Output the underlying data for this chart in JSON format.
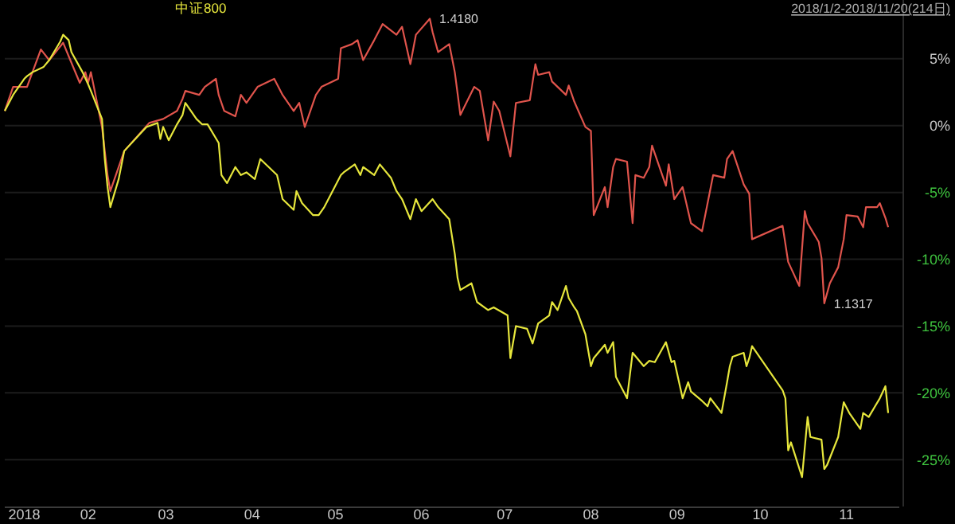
{
  "chart_data": {
    "type": "line",
    "legend": "top",
    "grid": "y",
    "annotations": [
      "2018/1/2-2018/11/20(214日)",
      {
        "text": "1.4180",
        "x": "2018-06-04",
        "y": 8.0
      },
      {
        "text": "1.1317",
        "x": "2018-10-24",
        "y": -13.3
      }
    ],
    "xlim": [
      "2018-01-02",
      "2018-11-20"
    ],
    "xticks": [
      {
        "value": "2018-01-09",
        "label": "2018"
      },
      {
        "value": "2018-02-01",
        "label": "02"
      },
      {
        "value": "2018-03-01",
        "label": "03"
      },
      {
        "value": "2018-04-01",
        "label": "04"
      },
      {
        "value": "2018-05-01",
        "label": "05"
      },
      {
        "value": "2018-06-01",
        "label": "06"
      },
      {
        "value": "2018-07-01",
        "label": "07"
      },
      {
        "value": "2018-08-01",
        "label": "08"
      },
      {
        "value": "2018-09-01",
        "label": "09"
      },
      {
        "value": "2018-10-01",
        "label": "10"
      },
      {
        "value": "2018-11-01",
        "label": "11"
      }
    ],
    "ylim": [
      -28.5,
      9.4
    ],
    "yticks": [
      {
        "value": 5,
        "label": "5%"
      },
      {
        "value": 0,
        "label": "0%"
      },
      {
        "value": -5,
        "label": "-5%"
      },
      {
        "value": -10,
        "label": "-10%"
      },
      {
        "value": -15,
        "label": "-15%"
      },
      {
        "value": -20,
        "label": "-20%"
      },
      {
        "value": -25,
        "label": "-25%"
      }
    ],
    "series": [
      {
        "color": "#e0544c",
        "x": [
          "2018-01-02",
          "2018-01-05",
          "2018-01-10",
          "2018-01-15",
          "2018-01-18",
          "2018-01-23",
          "2018-01-25",
          "2018-01-29",
          "2018-01-31",
          "2018-02-01",
          "2018-02-02",
          "2018-02-06",
          "2018-02-08",
          "2018-02-09",
          "2018-02-14",
          "2018-02-23",
          "2018-02-28",
          "2018-03-05",
          "2018-03-07",
          "2018-03-08",
          "2018-03-13",
          "2018-03-15",
          "2018-03-19",
          "2018-03-20",
          "2018-03-22",
          "2018-03-26",
          "2018-03-28",
          "2018-03-30",
          "2018-04-03",
          "2018-04-09",
          "2018-04-12",
          "2018-04-16",
          "2018-04-18",
          "2018-04-20",
          "2018-04-24",
          "2018-04-26",
          "2018-05-02",
          "2018-05-03",
          "2018-05-07",
          "2018-05-09",
          "2018-05-11",
          "2018-05-15",
          "2018-05-18",
          "2018-05-23",
          "2018-05-25",
          "2018-05-28",
          "2018-05-30",
          "2018-06-04",
          "2018-06-05",
          "2018-06-07",
          "2018-06-11",
          "2018-06-13",
          "2018-06-15",
          "2018-06-20",
          "2018-06-22",
          "2018-06-25",
          "2018-06-27",
          "2018-06-29",
          "2018-07-03",
          "2018-07-05",
          "2018-07-10",
          "2018-07-12",
          "2018-07-13",
          "2018-07-17",
          "2018-07-18",
          "2018-07-23",
          "2018-07-24",
          "2018-07-26",
          "2018-07-30",
          "2018-08-01",
          "2018-08-02",
          "2018-08-06",
          "2018-08-07",
          "2018-08-09",
          "2018-08-10",
          "2018-08-14",
          "2018-08-16",
          "2018-08-17",
          "2018-08-20",
          "2018-08-22",
          "2018-08-23",
          "2018-08-27",
          "2018-08-28",
          "2018-08-29",
          "2018-08-31",
          "2018-09-03",
          "2018-09-05",
          "2018-09-06",
          "2018-09-10",
          "2018-09-12",
          "2018-09-14",
          "2018-09-18",
          "2018-09-19",
          "2018-09-21",
          "2018-09-25",
          "2018-09-27",
          "2018-09-28",
          "2018-10-09",
          "2018-10-11",
          "2018-10-15",
          "2018-10-17",
          "2018-10-18",
          "2018-10-22",
          "2018-10-23",
          "2018-10-24",
          "2018-10-26",
          "2018-10-29",
          "2018-10-31",
          "2018-11-01",
          "2018-11-05",
          "2018-11-07",
          "2018-11-08",
          "2018-11-12",
          "2018-11-13",
          "2018-11-15",
          "2018-11-16"
        ],
        "values": [
          1.1,
          2.9,
          2.9,
          5.7,
          4.9,
          6.2,
          5.2,
          3.2,
          4.0,
          3.2,
          4.0,
          -0.1,
          -3.7,
          -4.9,
          -1.9,
          0.2,
          0.5,
          1.1,
          2.0,
          2.6,
          2.3,
          2.9,
          3.5,
          2.3,
          1.1,
          0.7,
          2.3,
          1.7,
          2.9,
          3.5,
          2.3,
          1.1,
          1.7,
          -0.1,
          2.3,
          2.9,
          3.5,
          5.8,
          6.1,
          6.4,
          4.9,
          6.4,
          7.6,
          6.8,
          7.4,
          4.6,
          6.8,
          8.0,
          7.0,
          5.5,
          6.1,
          4.0,
          0.8,
          2.9,
          2.6,
          -1.1,
          1.8,
          1.1,
          -2.3,
          1.7,
          1.9,
          4.6,
          3.8,
          4.0,
          3.3,
          2.3,
          3.0,
          1.8,
          -0.1,
          -0.4,
          -6.7,
          -4.6,
          -6.1,
          -3.1,
          -2.5,
          -2.7,
          -7.3,
          -3.7,
          -3.9,
          -3.1,
          -1.5,
          -3.9,
          -4.5,
          -2.9,
          -5.5,
          -4.6,
          -6.4,
          -7.3,
          -7.9,
          -5.8,
          -3.7,
          -3.9,
          -2.5,
          -1.9,
          -4.4,
          -5.1,
          -8.5,
          -7.5,
          -10.2,
          -12.0,
          -6.4,
          -7.3,
          -8.7,
          -9.9,
          -13.3,
          -11.8,
          -10.6,
          -8.5,
          -6.7,
          -6.8,
          -7.6,
          -6.1,
          -6.1,
          -5.8,
          -6.9,
          -7.6
        ]
      },
      {
        "name": "中证800",
        "color": "#e6e63c",
        "x": [
          "2018-01-02",
          "2018-01-05",
          "2018-01-09",
          "2018-01-10",
          "2018-01-12",
          "2018-01-16",
          "2018-01-18",
          "2018-01-22",
          "2018-01-23",
          "2018-01-25",
          "2018-01-26",
          "2018-01-30",
          "2018-02-01",
          "2018-02-02",
          "2018-02-06",
          "2018-02-07",
          "2018-02-08",
          "2018-02-09",
          "2018-02-12",
          "2018-02-14",
          "2018-02-22",
          "2018-02-26",
          "2018-02-27",
          "2018-02-28",
          "2018-03-02",
          "2018-03-05",
          "2018-03-07",
          "2018-03-08",
          "2018-03-12",
          "2018-03-14",
          "2018-03-16",
          "2018-03-20",
          "2018-03-21",
          "2018-03-23",
          "2018-03-26",
          "2018-03-28",
          "2018-03-30",
          "2018-04-02",
          "2018-04-04",
          "2018-04-10",
          "2018-04-12",
          "2018-04-16",
          "2018-04-17",
          "2018-04-19",
          "2018-04-23",
          "2018-04-25",
          "2018-04-27",
          "2018-05-03",
          "2018-05-04",
          "2018-05-08",
          "2018-05-10",
          "2018-05-11",
          "2018-05-15",
          "2018-05-17",
          "2018-05-21",
          "2018-05-23",
          "2018-05-25",
          "2018-05-28",
          "2018-05-30",
          "2018-06-01",
          "2018-06-05",
          "2018-06-07",
          "2018-06-11",
          "2018-06-13",
          "2018-06-14",
          "2018-06-15",
          "2018-06-19",
          "2018-06-21",
          "2018-06-25",
          "2018-06-27",
          "2018-07-02",
          "2018-07-03",
          "2018-07-05",
          "2018-07-09",
          "2018-07-11",
          "2018-07-13",
          "2018-07-17",
          "2018-07-18",
          "2018-07-20",
          "2018-07-23",
          "2018-07-24",
          "2018-07-26",
          "2018-07-27",
          "2018-07-30",
          "2018-08-01",
          "2018-08-02",
          "2018-08-06",
          "2018-08-07",
          "2018-08-09",
          "2018-08-10",
          "2018-08-14",
          "2018-08-16",
          "2018-08-20",
          "2018-08-22",
          "2018-08-24",
          "2018-08-28",
          "2018-08-30",
          "2018-08-31",
          "2018-09-03",
          "2018-09-05",
          "2018-09-06",
          "2018-09-10",
          "2018-09-12",
          "2018-09-13",
          "2018-09-17",
          "2018-09-19",
          "2018-09-20",
          "2018-09-21",
          "2018-09-25",
          "2018-09-26",
          "2018-09-27",
          "2018-09-28",
          "2018-10-09",
          "2018-10-10",
          "2018-10-11",
          "2018-10-12",
          "2018-10-16",
          "2018-10-18",
          "2018-10-19",
          "2018-10-23",
          "2018-10-24",
          "2018-10-25",
          "2018-10-29",
          "2018-10-31",
          "2018-11-02",
          "2018-11-06",
          "2018-11-07",
          "2018-11-09",
          "2018-11-13",
          "2018-11-15",
          "2018-11-16"
        ],
        "values": [
          1.1,
          2.3,
          3.5,
          3.7,
          4.0,
          4.4,
          4.9,
          6.3,
          6.8,
          6.4,
          5.5,
          4.0,
          3.1,
          2.6,
          0.5,
          -2.5,
          -4.6,
          -6.1,
          -4.0,
          -1.9,
          -0.1,
          0.2,
          -1.0,
          -0.1,
          -1.1,
          0.1,
          0.8,
          1.7,
          0.5,
          0.1,
          0.1,
          -1.3,
          -3.7,
          -4.3,
          -3.1,
          -3.7,
          -3.5,
          -4.0,
          -2.5,
          -3.7,
          -5.5,
          -6.3,
          -4.9,
          -5.8,
          -6.7,
          -6.7,
          -6.1,
          -3.7,
          -3.5,
          -2.9,
          -3.7,
          -3.1,
          -3.7,
          -2.9,
          -3.9,
          -4.9,
          -5.5,
          -7.0,
          -5.5,
          -6.4,
          -5.5,
          -6.1,
          -7.0,
          -9.6,
          -11.4,
          -12.3,
          -11.8,
          -13.2,
          -13.8,
          -13.6,
          -14.2,
          -17.4,
          -15.0,
          -15.2,
          -16.3,
          -14.8,
          -14.2,
          -13.2,
          -13.8,
          -12.0,
          -12.9,
          -13.6,
          -13.9,
          -15.6,
          -18.0,
          -17.4,
          -16.4,
          -17.0,
          -16.2,
          -18.8,
          -20.4,
          -17.0,
          -18.0,
          -17.6,
          -17.7,
          -16.2,
          -17.7,
          -17.6,
          -20.4,
          -19.2,
          -19.9,
          -20.6,
          -21.0,
          -20.4,
          -21.5,
          -19.2,
          -18.0,
          -17.3,
          -17.0,
          -18.0,
          -17.4,
          -16.5,
          -19.8,
          -20.4,
          -24.3,
          -23.7,
          -26.3,
          -21.8,
          -23.3,
          -23.5,
          -25.7,
          -25.4,
          -23.3,
          -20.7,
          -21.5,
          -22.7,
          -21.5,
          -21.8,
          -20.4,
          -19.5,
          -21.5
        ]
      }
    ]
  }
}
